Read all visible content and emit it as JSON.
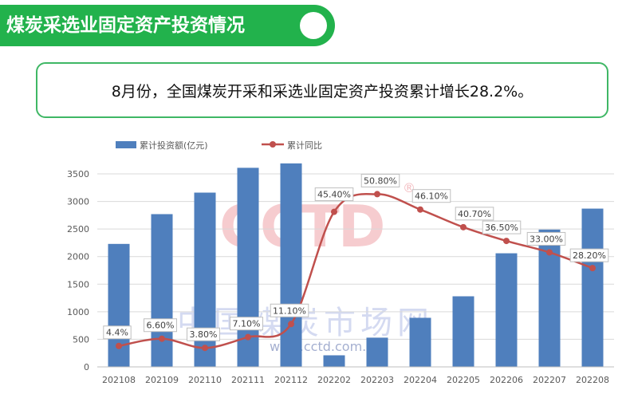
{
  "header": {
    "title": "煤炭采选业固定资产投资情况",
    "summary": "8月份，全国煤炭开采和采选业固定资产投资累计增长28.2%。"
  },
  "watermark": {
    "logo": "CCTD",
    "registered": "®",
    "name": "中国煤炭市场网",
    "url": "www.cctd.com.cn"
  },
  "colors": {
    "banner": "#22b24c",
    "bar": "#4f7fbd",
    "line": "#c0504d"
  },
  "chart_data": {
    "type": "bar",
    "categories": [
      "202108",
      "202109",
      "202110",
      "202111",
      "202112",
      "202202",
      "202203",
      "202204",
      "202205",
      "202206",
      "202207",
      "202208"
    ],
    "series": [
      {
        "name": "累计投资额(亿元)",
        "type": "bar",
        "axis": "left",
        "values": [
          2230,
          2770,
          3160,
          3610,
          3690,
          210,
          530,
          890,
          1280,
          2060,
          2490,
          2870
        ]
      },
      {
        "name": "累计同比",
        "type": "line",
        "axis": "right",
        "values": [
          4.4,
          6.6,
          3.8,
          7.1,
          11.1,
          45.4,
          50.8,
          46.1,
          40.7,
          36.5,
          33.0,
          28.2
        ],
        "labels": [
          "4.4%",
          "6.60%",
          "3.80%",
          "7.10%",
          "11.10%",
          "45.40%",
          "50.80%",
          "46.10%",
          "40.70%",
          "36.50%",
          "33.00%",
          "28.20%"
        ]
      }
    ],
    "y_left": {
      "ticks": [
        "0",
        "500",
        "1000",
        "1500",
        "2000",
        "2500",
        "3000",
        "3500"
      ],
      "ylim": [
        0,
        3500
      ]
    },
    "y_right_lim": [
      -2,
      57
    ],
    "legend_position": "top-left",
    "grid": true
  }
}
